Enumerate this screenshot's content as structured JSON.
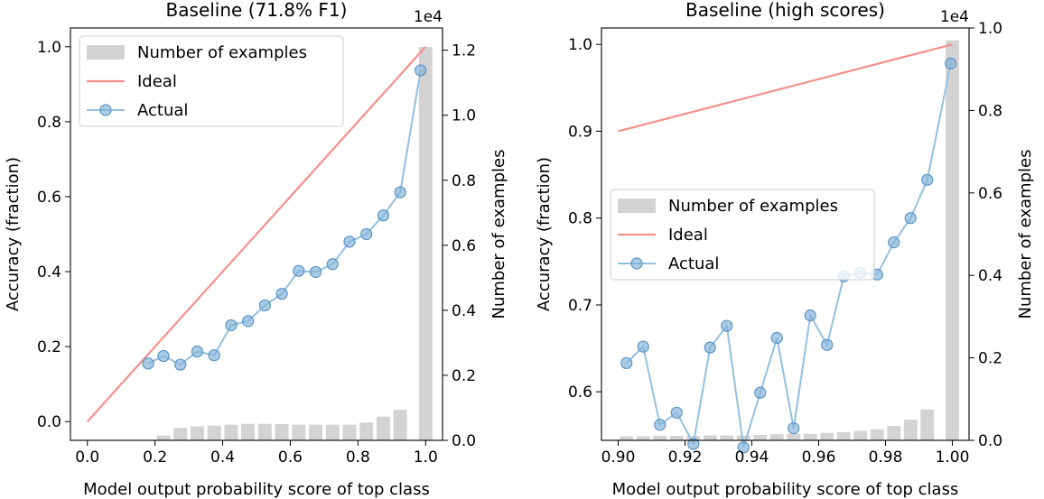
{
  "colors": {
    "bars": "#d3d3d3",
    "ideal": "#f4908c",
    "actual_line": "#94c0df",
    "actual_marker_fill": "#7fb1d8",
    "actual_marker_edge": "#5a94c4",
    "axis": "#000000",
    "legend_edge": "#cccccc"
  },
  "chart_data": [
    {
      "type": "bar+line",
      "title": "Baseline (71.8% F1)",
      "xlabel": "Model output probability score of top class",
      "ylabel_left": "Accuracy (fraction)",
      "ylabel_right": "Number of examples",
      "right_axis_exponent": "1e4",
      "xlim": [
        -0.05,
        1.05
      ],
      "ylim_left": [
        -0.05,
        1.05
      ],
      "ylim_right": [
        0,
        1.2684
      ],
      "xticks": [
        0.0,
        0.2,
        0.4,
        0.6,
        0.8,
        1.0
      ],
      "xtick_labels": [
        "0.0",
        "0.2",
        "0.4",
        "0.6",
        "0.8",
        "1.0"
      ],
      "yticks_left": [
        0.0,
        0.2,
        0.4,
        0.6,
        0.8,
        1.0
      ],
      "ytick_labels_left": [
        "0.0",
        "0.2",
        "0.4",
        "0.6",
        "0.8",
        "1.0"
      ],
      "yticks_right": [
        0.0,
        0.2,
        0.4,
        0.6,
        0.8,
        1.0,
        1.2
      ],
      "ytick_labels_right": [
        "0.0",
        "0.2",
        "0.4",
        "0.6",
        "0.8",
        "1.0",
        "1.2"
      ],
      "legend": {
        "position": "upper-left",
        "entries": [
          "Number of examples",
          "Ideal",
          "Actual"
        ]
      },
      "bars": {
        "name": "Number of examples",
        "x": [
          0.225,
          0.275,
          0.325,
          0.375,
          0.425,
          0.475,
          0.525,
          0.575,
          0.625,
          0.675,
          0.725,
          0.775,
          0.825,
          0.875,
          0.925,
          1.0
        ],
        "values": [
          0.015,
          0.038,
          0.043,
          0.045,
          0.048,
          0.051,
          0.051,
          0.05,
          0.048,
          0.048,
          0.048,
          0.048,
          0.055,
          0.073,
          0.094,
          1.21
        ],
        "width": 0.04
      },
      "ideal": {
        "name": "Ideal",
        "x": [
          0.0,
          1.0
        ],
        "y": [
          0.0,
          1.0
        ]
      },
      "actual": {
        "name": "Actual",
        "x": [
          0.18,
          0.225,
          0.275,
          0.325,
          0.375,
          0.425,
          0.475,
          0.525,
          0.575,
          0.625,
          0.675,
          0.725,
          0.775,
          0.825,
          0.875,
          0.925,
          0.985
        ],
        "y": [
          0.155,
          0.175,
          0.152,
          0.187,
          0.177,
          0.257,
          0.268,
          0.31,
          0.341,
          0.402,
          0.399,
          0.42,
          0.48,
          0.5,
          0.55,
          0.612,
          0.937
        ]
      }
    },
    {
      "type": "bar+line",
      "title": "Baseline (high scores)",
      "xlabel": "Model output probability score of top class",
      "ylabel_left": "Accuracy (fraction)",
      "ylabel_right": "Number of examples",
      "right_axis_exponent": "1e4",
      "xlim": [
        0.895,
        1.005
      ],
      "ylim_left": [
        0.5441,
        1.0189
      ],
      "ylim_right": [
        0,
        1.0
      ],
      "xticks": [
        0.9,
        0.92,
        0.94,
        0.96,
        0.98,
        1.0
      ],
      "xtick_labels": [
        "0.90",
        "0.92",
        "0.94",
        "0.96",
        "0.98",
        "1.00"
      ],
      "yticks_left": [
        0.6,
        0.7,
        0.8,
        0.9,
        1.0
      ],
      "ytick_labels_left": [
        "0.6",
        "0.7",
        "0.8",
        "0.9",
        "1.0"
      ],
      "yticks_right": [
        0.0,
        0.2,
        0.4,
        0.6,
        0.8,
        1.0
      ],
      "ytick_labels_right": [
        "0.0",
        "0.2",
        "0.4",
        "0.6",
        "0.8",
        "1.0"
      ],
      "legend": {
        "position": "center-left",
        "entries": [
          "Number of examples",
          "Ideal",
          "Actual"
        ]
      },
      "bars": {
        "name": "Number of examples",
        "x": [
          0.9025,
          0.9075,
          0.9125,
          0.9175,
          0.9225,
          0.9275,
          0.9325,
          0.9375,
          0.9425,
          0.9475,
          0.9525,
          0.9575,
          0.9625,
          0.9675,
          0.9725,
          0.9775,
          0.9825,
          0.9875,
          0.9925,
          1.0
        ],
        "values": [
          0.01,
          0.01,
          0.011,
          0.011,
          0.011,
          0.012,
          0.012,
          0.012,
          0.013,
          0.015,
          0.016,
          0.016,
          0.018,
          0.02,
          0.023,
          0.027,
          0.035,
          0.05,
          0.075,
          0.97
        ],
        "width": 0.004
      },
      "ideal": {
        "name": "Ideal",
        "x": [
          0.9,
          1.0
        ],
        "y": [
          0.9,
          1.0
        ]
      },
      "actual": {
        "name": "Actual",
        "x": [
          0.9025,
          0.9075,
          0.9125,
          0.9175,
          0.9225,
          0.9275,
          0.9325,
          0.9375,
          0.9425,
          0.9475,
          0.9525,
          0.9575,
          0.9625,
          0.9675,
          0.9725,
          0.9775,
          0.9825,
          0.9875,
          0.9925,
          0.9995
        ],
        "y": [
          0.633,
          0.652,
          0.562,
          0.576,
          0.54,
          0.651,
          0.676,
          0.536,
          0.599,
          0.662,
          0.558,
          0.688,
          0.654,
          0.733,
          0.737,
          0.735,
          0.772,
          0.8,
          0.844,
          0.978
        ]
      }
    }
  ]
}
